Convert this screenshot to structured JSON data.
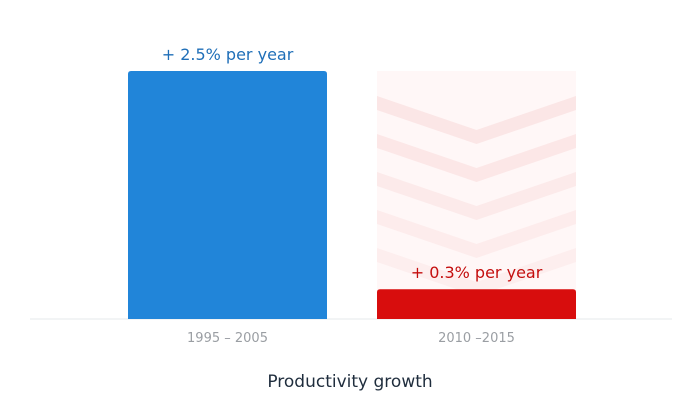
{
  "chart_data": {
    "type": "bar",
    "title": "Productivity growth",
    "categories": [
      "1995 – 2005",
      "2010 –2015"
    ],
    "values": [
      2.5,
      0.3
    ],
    "data_labels": [
      "+ 2.5% per year",
      "+ 0.3% per year"
    ],
    "ylim": [
      0,
      2.5
    ],
    "grid": false,
    "legend": "none"
  },
  "colors": {
    "bar_1": "#2185d9",
    "bar_2": "#d80d0d",
    "label_1": "#1f6fb8",
    "label_2": "#c40e0e",
    "tick_label": "#9a9ea3",
    "baseline": "#e6e8eb",
    "chevron": "#fbe3e3",
    "title": "#1f2d3d"
  }
}
